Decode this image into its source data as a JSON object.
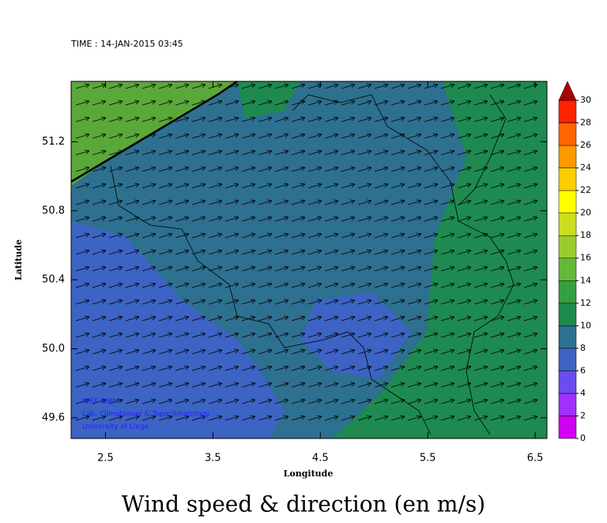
{
  "header": {
    "time": "TIME : 14-JAN-2015 03:45"
  },
  "axes": {
    "xlabel": "Longitude",
    "ylabel": "Latitude",
    "xlim": [
      2.18,
      6.61
    ],
    "ylim": [
      49.48,
      51.55
    ],
    "xticks": [
      2.5,
      3.5,
      4.5,
      5.5,
      6.5
    ],
    "yticks": [
      49.6,
      {
        "value": 50,
        "label": "50.0"
      },
      50.4,
      50.8,
      51.2
    ]
  },
  "colorbar": {
    "ticks": [
      0,
      2,
      4,
      6,
      8,
      10,
      12,
      14,
      16,
      18,
      20,
      22,
      24,
      26,
      28,
      30
    ],
    "colors": [
      "#d000f0",
      "#a030ff",
      "#6a4cf0",
      "#3d63c4",
      "#2e7090",
      "#1e8a50",
      "#35a040",
      "#66b83a",
      "#9acc30",
      "#ccdd20",
      "#ffff00",
      "#ffcc00",
      "#ff9900",
      "#ff6600",
      "#ff2200",
      "#aa0000"
    ]
  },
  "credits": [
    "WRF-NMM",
    "Lab. Climatology & Topoclimatology",
    "University of Liege"
  ],
  "caption": "Wind speed & direction (en m/s)"
}
